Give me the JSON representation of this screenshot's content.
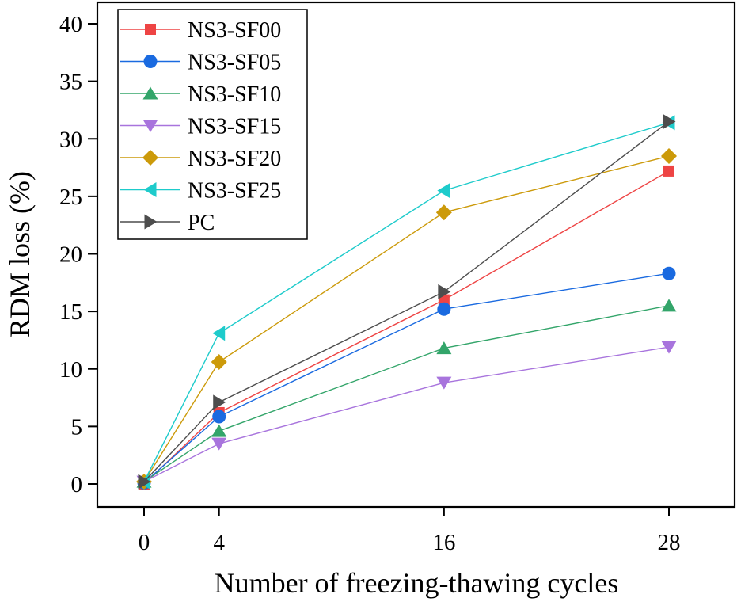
{
  "chart_data": {
    "type": "line",
    "title": "",
    "xlabel": "Number of  freezing-thawing cycles",
    "ylabel": "RDM loss (%)",
    "x": [
      0,
      4,
      16,
      28
    ],
    "x_ticks": [
      "0",
      "4",
      "16",
      "28"
    ],
    "y_ticks": [
      "0",
      "5",
      "10",
      "15",
      "20",
      "25",
      "30",
      "35",
      "40"
    ],
    "ylim": [
      -2,
      40.5
    ],
    "xlim": [
      -2.1,
      30.3
    ],
    "grid": false,
    "legend_position": "top-left",
    "series": [
      {
        "name": "NS3-SF00",
        "color": "#ee4444",
        "marker": "square",
        "values": [
          0.0,
          6.2,
          16.0,
          27.2
        ]
      },
      {
        "name": "NS3-SF05",
        "color": "#1a6ae0",
        "marker": "circle",
        "values": [
          0.1,
          5.85,
          15.2,
          18.3
        ]
      },
      {
        "name": "NS3-SF10",
        "color": "#33a56a",
        "marker": "triangle-up",
        "values": [
          0.2,
          4.6,
          11.8,
          15.5
        ]
      },
      {
        "name": "NS3-SF15",
        "color": "#a874dd",
        "marker": "triangle-down",
        "values": [
          0.2,
          3.5,
          8.8,
          11.9
        ]
      },
      {
        "name": "NS3-SF20",
        "color": "#cc9a0a",
        "marker": "diamond",
        "values": [
          0.2,
          10.6,
          23.6,
          28.5
        ]
      },
      {
        "name": "NS3-SF25",
        "color": "#1ecbcb",
        "marker": "triangle-left",
        "values": [
          0.2,
          13.1,
          25.5,
          31.4
        ]
      },
      {
        "name": "PC",
        "color": "#4d4d4d",
        "marker": "triangle-right",
        "values": [
          0.2,
          7.1,
          16.7,
          31.5
        ]
      }
    ]
  }
}
